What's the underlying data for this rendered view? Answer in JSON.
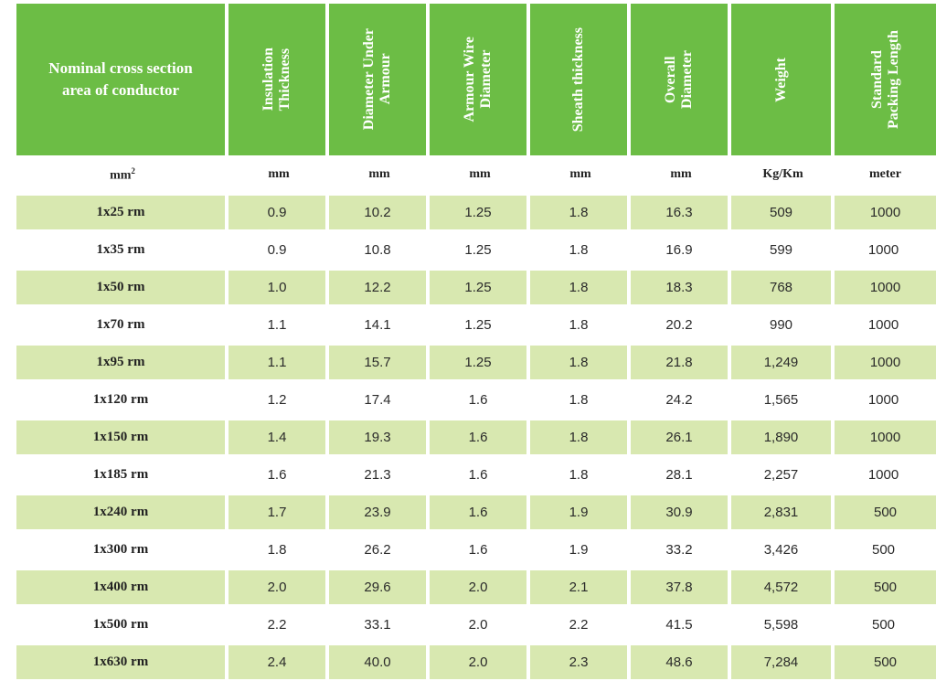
{
  "table": {
    "columns": [
      {
        "label": "Nominal cross section\narea of conductor",
        "unit": "mm",
        "unit_sup": "2"
      },
      {
        "label": "Insulation\nThickness",
        "unit": "mm"
      },
      {
        "label": "Diameter Under\nArmour",
        "unit": "mm"
      },
      {
        "label": "Armour Wire\nDiameter",
        "unit": "mm"
      },
      {
        "label": "Sheath thickness",
        "unit": "mm"
      },
      {
        "label": "Overall\nDiameter",
        "unit": "mm"
      },
      {
        "label": "Weight",
        "unit": "Kg/Km"
      },
      {
        "label": "Standard\nPacking Length",
        "unit": "meter"
      }
    ],
    "rows": [
      [
        "1x25  rm",
        "0.9",
        "10.2",
        "1.25",
        "1.8",
        "16.3",
        "509",
        "1000"
      ],
      [
        "1x35  rm",
        "0.9",
        "10.8",
        "1.25",
        "1.8",
        "16.9",
        "599",
        "1000"
      ],
      [
        "1x50  rm",
        "1.0",
        "12.2",
        "1.25",
        "1.8",
        "18.3",
        "768",
        "1000"
      ],
      [
        "1x70  rm",
        "1.1",
        "14.1",
        "1.25",
        "1.8",
        "20.2",
        "990",
        "1000"
      ],
      [
        "1x95  rm",
        "1.1",
        "15.7",
        "1.25",
        "1.8",
        "21.8",
        "1,249",
        "1000"
      ],
      [
        "1x120  rm",
        "1.2",
        "17.4",
        "1.6",
        "1.8",
        "24.2",
        "1,565",
        "1000"
      ],
      [
        "1x150  rm",
        "1.4",
        "19.3",
        "1.6",
        "1.8",
        "26.1",
        "1,890",
        "1000"
      ],
      [
        "1x185  rm",
        "1.6",
        "21.3",
        "1.6",
        "1.8",
        "28.1",
        "2,257",
        "1000"
      ],
      [
        "1x240  rm",
        "1.7",
        "23.9",
        "1.6",
        "1.9",
        "30.9",
        "2,831",
        "500"
      ],
      [
        "1x300   rm",
        "1.8",
        "26.2",
        "1.6",
        "1.9",
        "33.2",
        "3,426",
        "500"
      ],
      [
        "1x400   rm",
        "2.0",
        "29.6",
        "2.0",
        "2.1",
        "37.8",
        "4,572",
        "500"
      ],
      [
        "1x500   rm",
        "2.2",
        "33.1",
        "2.0",
        "2.2",
        "41.5",
        "5,598",
        "500"
      ],
      [
        "1x630   rm",
        "2.4",
        "40.0",
        "2.0",
        "2.3",
        "48.6",
        "7,284",
        "500"
      ]
    ]
  },
  "colors": {
    "header_green": "#6cbd45",
    "row_shade": "#d8e8b0"
  }
}
